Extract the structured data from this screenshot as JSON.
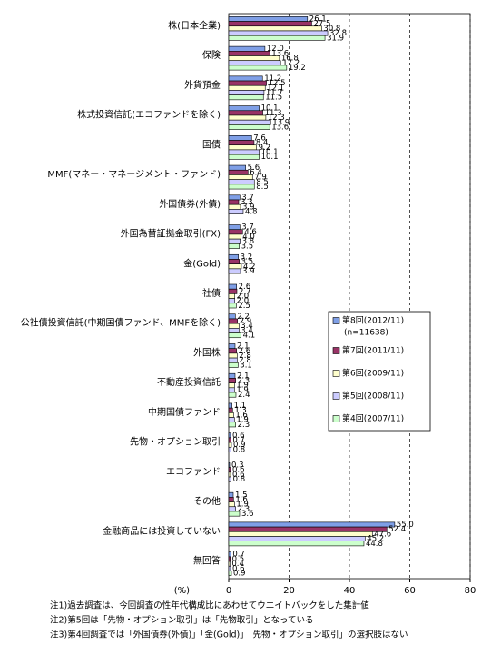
{
  "chart_data": {
    "type": "hbar",
    "categories": [
      "株(日本企業)",
      "保険",
      "外貨預金",
      "株式投資信託(エコファンドを除く)",
      "国債",
      "MMF(マネー・マネージメント・ファンド)",
      "外国債券(外債)",
      "外国為替証拠金取引(FX)",
      "金(Gold)",
      "社債",
      "公社債投資信託(中期国債ファンド、MMFを除く)",
      "外国株",
      "不動産投資信託",
      "中期国債ファンド",
      "先物・オプション取引",
      "エコファンド",
      "その他",
      "金融商品には投資していない",
      "無回答"
    ],
    "series": [
      {
        "name": "第8回(2012/11)",
        "color": "#7f9fe6",
        "values": [
          26.1,
          12,
          11.2,
          10.1,
          7.6,
          5.6,
          3.7,
          3.7,
          3.2,
          2.6,
          2.2,
          2.1,
          2.1,
          1.1,
          0.6,
          0.3,
          1.5,
          55,
          0.7
        ],
        "value_labels": [
          "26.1",
          "12.0",
          "11.2",
          "10.1",
          "7.6",
          "5.6",
          "3.7",
          "3.7",
          "3.2",
          "2.6",
          "2.2",
          "2.1",
          "2.1",
          "1.1",
          "0.6",
          "0.3",
          "1.5",
          "55.0",
          "0.7"
        ]
      },
      {
        "name": "第7回(2011/11)",
        "color": "#993366",
        "values": [
          27.5,
          13.6,
          12.5,
          11.3,
          8.4,
          6.4,
          3.3,
          4.6,
          3.5,
          2.7,
          2.9,
          2.6,
          2.3,
          1.3,
          0.7,
          0.6,
          1.6,
          52.4,
          0.5
        ],
        "value_labels": [
          "27.5",
          "13.6",
          "12.5",
          "11.3",
          "8.4",
          "6.4",
          "3.3",
          "4.6",
          "3.5",
          "2.7",
          "2.9",
          "2.6",
          "2.3",
          "1.3",
          "0.7",
          "0.6",
          "1.6",
          "52.4",
          "0.5"
        ]
      },
      {
        "name": "第6回(2009/11)",
        "color": "#ffffcc",
        "values": [
          30.8,
          16.8,
          12.1,
          12.3,
          9.2,
          7.9,
          3.9,
          4,
          4.2,
          2,
          3.4,
          2.8,
          1.9,
          1.6,
          0.9,
          0.6,
          1.9,
          47.6,
          0.4
        ],
        "value_labels": [
          "30.8",
          "16.8",
          "12.1",
          "12.3",
          "9.2",
          "7.9",
          "3.9",
          "4.0",
          "4.2",
          "2.0",
          "3.4",
          "2.8",
          "1.9",
          "1.6",
          "0.9",
          "0.6",
          "1.9",
          "47.6",
          "0.4"
        ]
      },
      {
        "name": "第5回(2008/11)",
        "color": "#ccccff",
        "values": [
          32.8,
          17.2,
          11.7,
          13.9,
          10.1,
          8.5,
          4.8,
          3.8,
          3.9,
          2,
          3.4,
          2.8,
          1.9,
          1.9,
          0.8,
          0.8,
          2.3,
          45.2,
          0.6
        ],
        "value_labels": [
          "32.8",
          "17.2",
          "11.7",
          "13.9",
          "10.1",
          "8.5",
          "4.8",
          "3.8",
          "3.9",
          "2.0",
          "3.4",
          "2.8",
          "1.9",
          "1.9",
          "0.8",
          "0.8",
          "2.3",
          "45.2",
          "0.6"
        ]
      },
      {
        "name": "第4回(2007/11)",
        "color": "#ccffcc",
        "values": [
          31.9,
          19.2,
          11.5,
          13.6,
          10.1,
          8.5,
          null,
          3.5,
          null,
          2.5,
          4.1,
          3.1,
          2.4,
          2.3,
          null,
          null,
          3.6,
          44.8,
          0.9
        ],
        "value_labels": [
          "31.9",
          "19.2",
          "11.5",
          "13.6",
          "10.1",
          "8.5",
          null,
          "3.5",
          null,
          "2.5",
          "4.1",
          "3.1",
          "2.4",
          "2.3",
          null,
          null,
          "3.6",
          "44.8",
          "0.9"
        ]
      }
    ],
    "legend_note": "(n=11638)",
    "xlabel": "(%)",
    "xlim": [
      0,
      80
    ],
    "xticks": [
      0,
      20,
      40,
      60,
      80
    ],
    "grid": true,
    "notes": [
      "注1)過去調査は、今回調査の性年代構成比にあわせてウエイトバックをした集計値",
      "注2)第5回は「先物・オプション取引」は「先物取引」となっている",
      "注3)第4回調査では「外国債券(外債)」「金(Gold)」「先物・オプション取引」の選択肢はない"
    ]
  }
}
